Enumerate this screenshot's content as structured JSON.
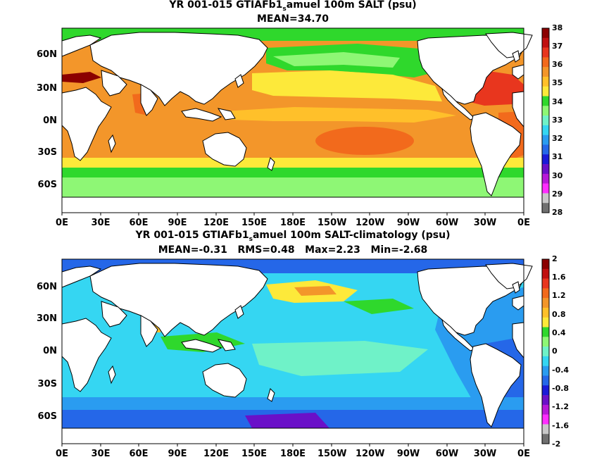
{
  "top": {
    "title_a": "YR 001-015 GTIAFb1",
    "title_sub": "s",
    "title_b": "amuel 100m SALT (psu)",
    "stats": "MEAN=34.70",
    "lat_labels": [
      "60N",
      "30N",
      "0N",
      "30S",
      "60S"
    ],
    "lon_labels": [
      "0E",
      "30E",
      "60E",
      "90E",
      "120E",
      "150E",
      "180E",
      "150W",
      "120W",
      "90W",
      "60W",
      "30W",
      "0E"
    ],
    "colorbar": {
      "ticks": [
        "38",
        "37",
        "36",
        "35",
        "34",
        "33",
        "32",
        "31",
        "30",
        "29",
        "28"
      ],
      "colors": [
        "#8b0000",
        "#c01010",
        "#e8361e",
        "#f26a1c",
        "#f3962a",
        "#ffc02a",
        "#fde93a",
        "#2fd82c",
        "#8ef775",
        "#6ff2c8",
        "#35d6f2",
        "#2a9cf0",
        "#2567e8",
        "#1a1ad8",
        "#6a10c8",
        "#b818d8",
        "#ff2dff",
        "#c8c8c8",
        "#707070"
      ]
    }
  },
  "bottom": {
    "title_a": "YR 001-015 GTIAFb1",
    "title_sub": "s",
    "title_b": "amuel 100m SALT-climatology (psu)",
    "stats": "MEAN=-0.31   RMS=0.48   Max=2.23   Min=-2.68",
    "lat_labels": [
      "60N",
      "30N",
      "0N",
      "30S",
      "60S"
    ],
    "lon_labels": [
      "0E",
      "30E",
      "60E",
      "90E",
      "120E",
      "150E",
      "180E",
      "150W",
      "120W",
      "90W",
      "60W",
      "30W",
      "0E"
    ],
    "colorbar": {
      "ticks": [
        "2",
        "1.6",
        "1.2",
        "0.8",
        "0.4",
        "0",
        "-0.4",
        "-0.8",
        "-1.2",
        "-1.6",
        "-2"
      ],
      "colors": [
        "#8b0000",
        "#c01010",
        "#e8361e",
        "#f26a1c",
        "#f3962a",
        "#ffc02a",
        "#fde93a",
        "#2fd82c",
        "#8ef775",
        "#6ff2c8",
        "#35d6f2",
        "#2a9cf0",
        "#2567e8",
        "#1a1ad8",
        "#6a10c8",
        "#b818d8",
        "#ff2dff",
        "#c8c8c8",
        "#707070"
      ]
    }
  }
}
